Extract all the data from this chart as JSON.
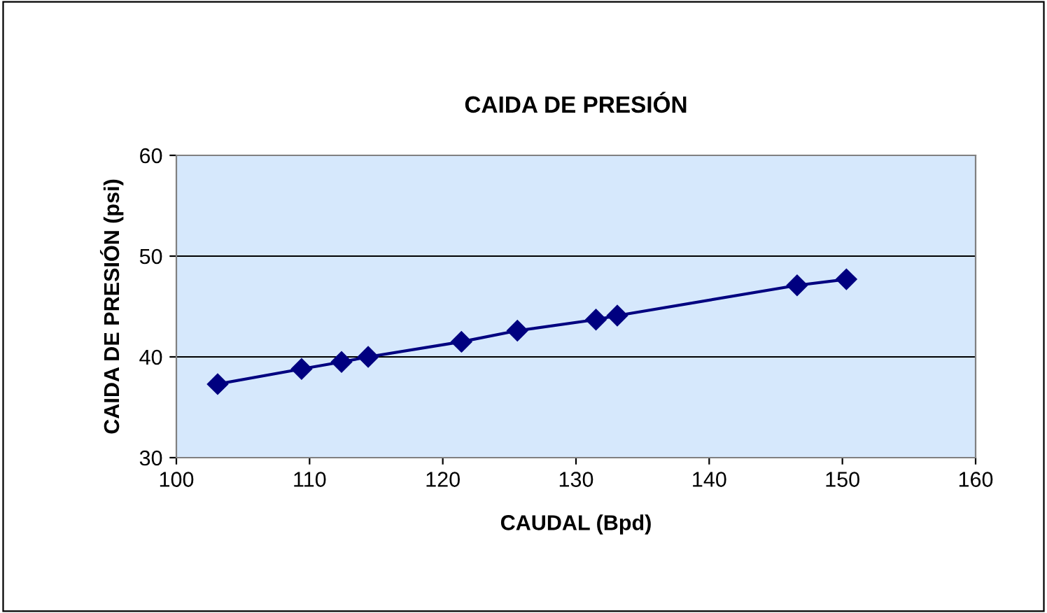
{
  "chart_data": {
    "type": "line",
    "title": "CAIDA DE PRESIÓN",
    "xlabel": "CAUDAL (Bpd)",
    "ylabel": "CAIDA DE PRESIÓN (psi)",
    "x": [
      103.1,
      109.4,
      112.4,
      114.4,
      121.4,
      125.6,
      131.5,
      133.1,
      146.6,
      150.3
    ],
    "series": [
      {
        "color": "#000080",
        "values": [
          37.3,
          38.8,
          39.5,
          40.0,
          41.5,
          42.6,
          43.7,
          44.1,
          47.1,
          47.7
        ]
      }
    ],
    "xlim": [
      100,
      160
    ],
    "xticks": [
      100,
      110,
      120,
      130,
      140,
      150,
      160
    ],
    "ylim": [
      30,
      60
    ],
    "yticks": [
      30,
      40,
      50,
      60
    ],
    "grid": "y",
    "marker": "diamond",
    "line_style": "solid",
    "legend": false
  }
}
